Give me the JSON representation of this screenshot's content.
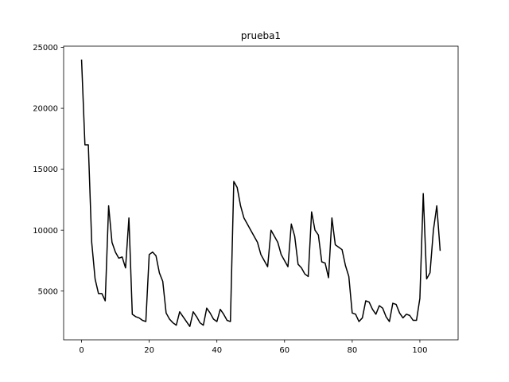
{
  "chart_data": {
    "type": "line",
    "title": "prueba1",
    "xlabel": "",
    "ylabel": "",
    "xlim": [
      -5.3,
      111.3
    ],
    "ylim": [
      1000,
      25100
    ],
    "grid": false,
    "legend": "none",
    "line_color": "#000000",
    "x_ticks": [
      0,
      20,
      40,
      60,
      80,
      100
    ],
    "y_ticks": [
      5000,
      10000,
      15000,
      20000,
      25000
    ],
    "series": [
      {
        "values": [
          24000,
          17000,
          17000,
          9000,
          6000,
          4800,
          4800,
          4200,
          12000,
          9000,
          8200,
          7700,
          7800,
          6900,
          11000,
          3100,
          2900,
          2800,
          2600,
          2500,
          8000,
          8200,
          7900,
          6500,
          5800,
          3200,
          2700,
          2400,
          2200,
          3300,
          2900,
          2500,
          2100,
          3300,
          2900,
          2400,
          2200,
          3600,
          3200,
          2700,
          2500,
          3500,
          3100,
          2600,
          2500,
          14000,
          13500,
          12000,
          11000,
          10500,
          10000,
          9500,
          9000,
          8000,
          7500,
          7000,
          10000,
          9500,
          9000,
          8000,
          7500,
          7000,
          10500,
          9500,
          7200,
          6900,
          6400,
          6200,
          11500,
          10000,
          9600,
          7400,
          7300,
          6100,
          11000,
          8800,
          8600,
          8400,
          7100,
          6200,
          3200,
          3100,
          2500,
          2800,
          4200,
          4100,
          3500,
          3100,
          3800,
          3600,
          2900,
          2500,
          4000,
          3900,
          3200,
          2800,
          3100,
          3000,
          2600,
          2600,
          4400,
          13000,
          6000,
          6500,
          10000,
          12000,
          8300
        ]
      }
    ]
  }
}
